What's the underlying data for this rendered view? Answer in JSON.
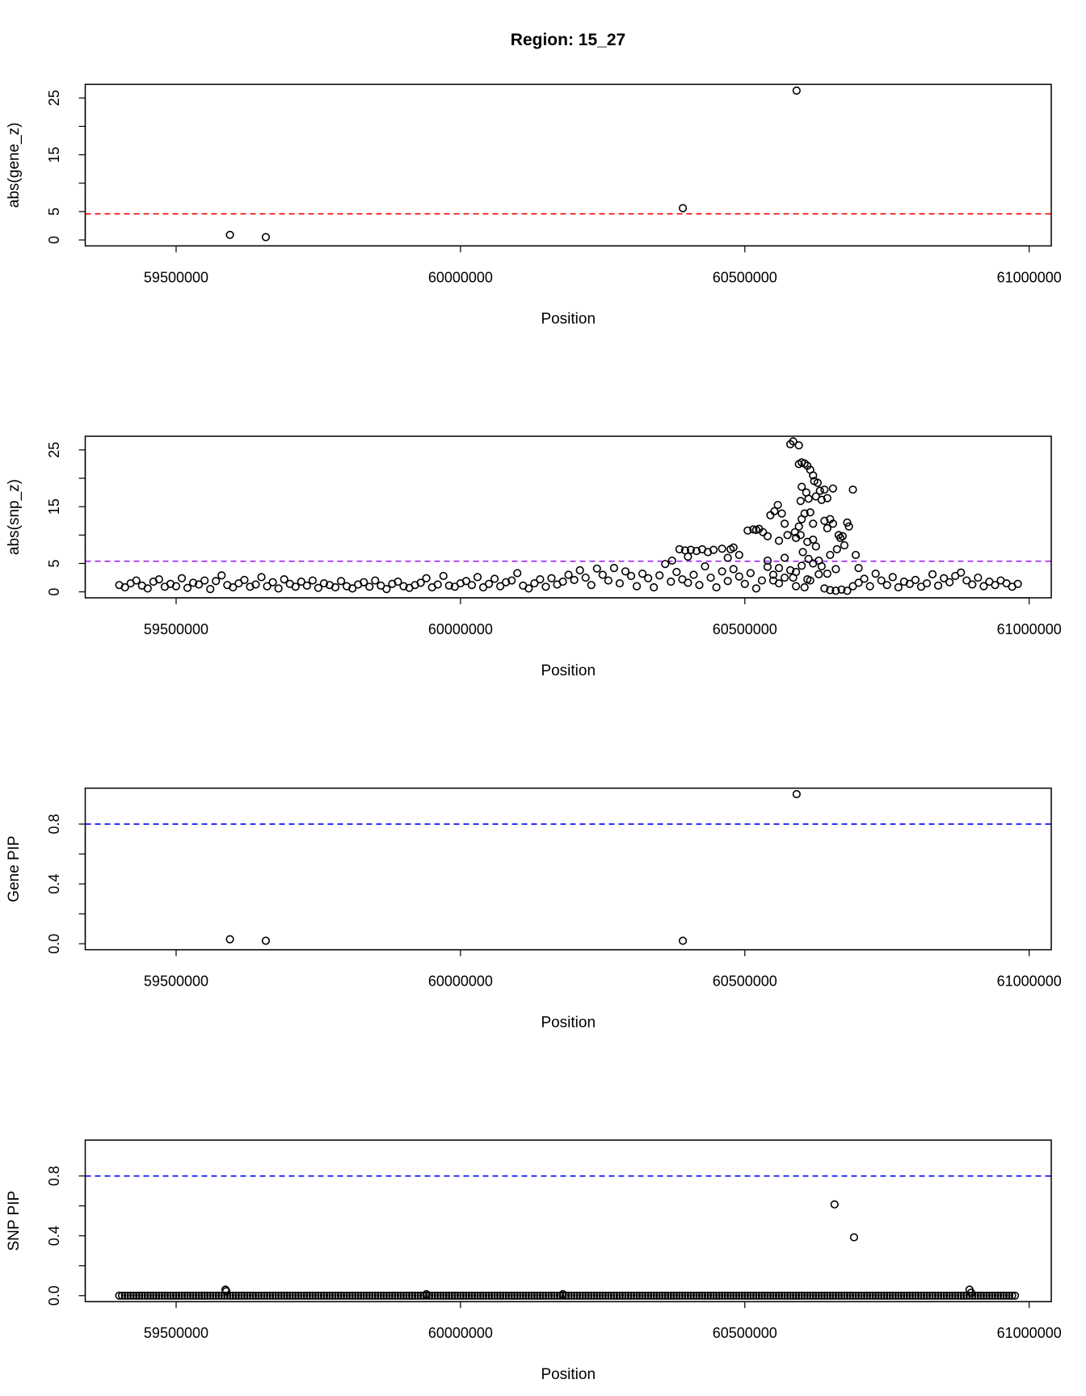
{
  "chart_data": [
    {
      "type": "scatter",
      "title": "Region: 15_27",
      "ylabel": "abs(gene_z)",
      "xlabel": "Position",
      "xlim": [
        59340200,
        61038800
      ],
      "ylim": [
        -1.05,
        27.4
      ],
      "xticks": [
        59500000,
        60000000,
        60500000,
        61000000
      ],
      "xtick_labels": [
        "59500000",
        "60000000",
        "60500000",
        "61000000"
      ],
      "yticks": [
        0,
        5,
        10,
        15,
        20,
        25
      ],
      "ytick_labels": [
        "0",
        "5",
        "",
        "15",
        "",
        "25"
      ],
      "threshold": {
        "value": 4.6,
        "color": "#ff0000"
      },
      "points": [
        [
          59594600,
          0.9
        ],
        [
          59657700,
          0.5
        ],
        [
          60391000,
          5.6
        ],
        [
          60591000,
          26.3
        ]
      ]
    },
    {
      "type": "scatter",
      "ylabel": "abs(snp_z)",
      "xlabel": "Position",
      "xlim": [
        59340200,
        61038800
      ],
      "ylim": [
        -1.05,
        27.4
      ],
      "xticks": [
        59500000,
        60000000,
        60500000,
        61000000
      ],
      "xtick_labels": [
        "59500000",
        "60000000",
        "60500000",
        "61000000"
      ],
      "yticks": [
        0,
        5,
        10,
        15,
        20,
        25
      ],
      "ytick_labels": [
        "0",
        "5",
        "",
        "15",
        "",
        "25"
      ],
      "threshold": {
        "value": 5.4,
        "color": "#a020f0"
      },
      "series_regular": {
        "x_start": 59400000,
        "x_step": 10000,
        "y": [
          1.2,
          0.8,
          1.5,
          2.0,
          1.1,
          0.6,
          1.8,
          2.2,
          0.9,
          1.4,
          1.0,
          2.4,
          0.7,
          1.6,
          1.3,
          2.0,
          0.5,
          1.9,
          2.9,
          1.2,
          0.8,
          1.5,
          2.1,
          0.9,
          1.3,
          2.6,
          1.0,
          1.7,
          0.6,
          2.2,
          1.4,
          0.9,
          1.8,
          1.1,
          2.0,
          0.7,
          1.5,
          1.2,
          0.8,
          1.9,
          1.0,
          0.6,
          1.3,
          1.7,
          0.9,
          2.0,
          1.1,
          0.5,
          1.4,
          1.8,
          1.0,
          0.7,
          1.2,
          1.6,
          2.4,
          0.8,
          1.3,
          2.8,
          1.1,
          0.9,
          1.5,
          1.9,
          1.2,
          2.6,
          0.8,
          1.4,
          2.3,
          1.0,
          1.7,
          2.0,
          3.3,
          1.1,
          0.6,
          1.5,
          2.2,
          0.9,
          2.4,
          1.3,
          1.8,
          3.0,
          2.1,
          3.8,
          2.5,
          1.2,
          4.1,
          3.0,
          2.0,
          4.2,
          1.5,
          3.6,
          2.8,
          1.0,
          3.2,
          2.4,
          0.8,
          2.9,
          4.9,
          1.8,
          3.5,
          2.2,
          1.6,
          3.0,
          1.2,
          4.5,
          2.5,
          0.8,
          3.6,
          1.9,
          4.0,
          2.7,
          1.4,
          3.3,
          0.6,
          2.0,
          4.4,
          3.0,
          1.5,
          2.5,
          3.8,
          1.0,
          4.6,
          2.2,
          5.0,
          3.1,
          0.6,
          0.3,
          0.2,
          0.4,
          0.2,
          1.0,
          1.6,
          2.3,
          1.0,
          3.2,
          2.0,
          1.2,
          2.6,
          0.8,
          1.8,
          1.4,
          2.1,
          0.9,
          1.5,
          3.1,
          1.1,
          2.4,
          1.7,
          2.8,
          3.4,
          2.0,
          1.3,
          2.5,
          1.0,
          1.8,
          1.2,
          2.0,
          1.5,
          0.9,
          1.4
        ]
      },
      "points": [
        [
          60385000,
          7.5
        ],
        [
          60395000,
          7.3
        ],
        [
          60405000,
          7.4
        ],
        [
          60415000,
          7.2
        ],
        [
          60425000,
          7.5
        ],
        [
          60435000,
          7.0
        ],
        [
          60445000,
          7.4
        ],
        [
          60460000,
          7.6
        ],
        [
          60475000,
          7.5
        ],
        [
          60480000,
          7.8
        ],
        [
          60490000,
          6.5
        ],
        [
          60470000,
          6.0
        ],
        [
          60372000,
          5.5
        ],
        [
          60400000,
          6.2
        ],
        [
          60505000,
          10.8
        ],
        [
          60515000,
          11.0
        ],
        [
          60525000,
          11.1
        ],
        [
          60532000,
          10.5
        ],
        [
          60520000,
          10.9
        ],
        [
          60540000,
          9.8
        ],
        [
          60545000,
          13.5
        ],
        [
          60552000,
          14.2
        ],
        [
          60558000,
          15.3
        ],
        [
          60565000,
          13.8
        ],
        [
          60570000,
          12.0
        ],
        [
          60560000,
          9.0
        ],
        [
          60575000,
          10.0
        ],
        [
          60580000,
          26.0
        ],
        [
          60585000,
          26.5
        ],
        [
          60595000,
          25.8
        ],
        [
          60595000,
          22.5
        ],
        [
          60600000,
          22.8
        ],
        [
          60605000,
          22.6
        ],
        [
          60610000,
          22.2
        ],
        [
          60615000,
          21.5
        ],
        [
          60620000,
          20.5
        ],
        [
          60622000,
          19.5
        ],
        [
          60628000,
          19.2
        ],
        [
          60632000,
          17.8
        ],
        [
          60640000,
          18.0
        ],
        [
          60645000,
          16.5
        ],
        [
          60655000,
          18.2
        ],
        [
          60600000,
          18.5
        ],
        [
          60608000,
          17.5
        ],
        [
          60598000,
          16.0
        ],
        [
          60612000,
          16.4
        ],
        [
          60625000,
          16.8
        ],
        [
          60635000,
          16.2
        ],
        [
          60615000,
          14.0
        ],
        [
          60605000,
          13.8
        ],
        [
          60595000,
          11.5
        ],
        [
          60600000,
          12.8
        ],
        [
          60590000,
          9.5
        ],
        [
          60588000,
          10.5
        ],
        [
          60598000,
          10.0
        ],
        [
          60610000,
          8.8
        ],
        [
          60620000,
          9.2
        ],
        [
          60625000,
          8.0
        ],
        [
          60612000,
          5.8
        ],
        [
          60630000,
          5.5
        ],
        [
          60590000,
          3.5
        ],
        [
          60602000,
          7.0
        ],
        [
          60620000,
          12.0
        ],
        [
          60640000,
          12.5
        ],
        [
          60645000,
          11.2
        ],
        [
          60650000,
          12.8
        ],
        [
          60655000,
          12.0
        ],
        [
          60665000,
          10.0
        ],
        [
          60668000,
          9.5
        ],
        [
          60675000,
          8.2
        ],
        [
          60680000,
          12.2
        ],
        [
          60683000,
          11.5
        ],
        [
          60672000,
          9.8
        ],
        [
          60662000,
          7.5
        ],
        [
          60650000,
          6.5
        ],
        [
          60660000,
          4.0
        ],
        [
          60645000,
          3.2
        ],
        [
          60635000,
          4.5
        ],
        [
          60690000,
          18.0
        ],
        [
          60695000,
          6.5
        ],
        [
          60700000,
          4.2
        ],
        [
          60615000,
          2.0
        ],
        [
          60585000,
          2.5
        ],
        [
          60570000,
          6.0
        ],
        [
          60560000,
          4.2
        ],
        [
          60550000,
          2.0
        ],
        [
          60540000,
          5.5
        ],
        [
          60605000,
          0.8
        ]
      ]
    },
    {
      "type": "scatter",
      "ylabel": "Gene PIP",
      "xlabel": "Position",
      "xlim": [
        59340200,
        61038800
      ],
      "ylim": [
        -0.04,
        1.04
      ],
      "xticks": [
        59500000,
        60000000,
        60500000,
        61000000
      ],
      "xtick_labels": [
        "59500000",
        "60000000",
        "60500000",
        "61000000"
      ],
      "yticks": [
        0,
        0.2,
        0.4,
        0.6,
        0.8
      ],
      "ytick_labels": [
        "0.0",
        "",
        "0.4",
        "",
        "0.8"
      ],
      "threshold": {
        "value": 0.8,
        "color": "#0000ff"
      },
      "points": [
        [
          59594600,
          0.03
        ],
        [
          59657700,
          0.02
        ],
        [
          60391000,
          0.02
        ],
        [
          60591000,
          1.0
        ]
      ]
    },
    {
      "type": "scatter",
      "ylabel": "SNP PIP",
      "xlabel": "Position",
      "xlim": [
        59340200,
        61038800
      ],
      "ylim": [
        -0.04,
        1.04
      ],
      "xticks": [
        59500000,
        60000000,
        60500000,
        61000000
      ],
      "xtick_labels": [
        "59500000",
        "60000000",
        "60500000",
        "61000000"
      ],
      "yticks": [
        0,
        0.2,
        0.4,
        0.6,
        0.8
      ],
      "ytick_labels": [
        "0.0",
        "",
        "0.4",
        "",
        "0.8"
      ],
      "threshold": {
        "value": 0.8,
        "color": "#0000ff"
      },
      "series_regular": {
        "x_start": 59400000,
        "x_step": 5000,
        "count": 316,
        "y_constant": 0.0
      },
      "points": [
        [
          59586700,
          0.04
        ],
        [
          59588000,
          0.03
        ],
        [
          60657700,
          0.61
        ],
        [
          60692000,
          0.39
        ],
        [
          60895000,
          0.04
        ],
        [
          60898000,
          0.02
        ],
        [
          59940000,
          0.01
        ],
        [
          60180000,
          0.01
        ]
      ]
    }
  ]
}
